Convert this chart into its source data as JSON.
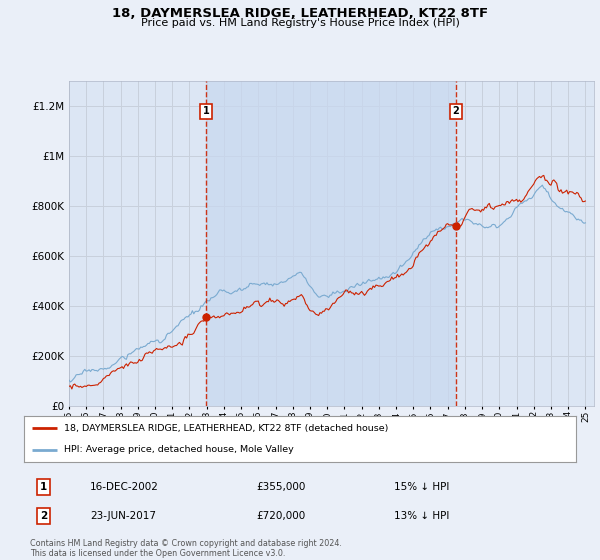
{
  "title": "18, DAYMERSLEA RIDGE, LEATHERHEAD, KT22 8TF",
  "subtitle": "Price paid vs. HM Land Registry's House Price Index (HPI)",
  "background_color": "#eaeff8",
  "plot_bg_color": "#dce6f4",
  "shade_color": "#c8d8ef",
  "grid_color": "#c8d0dc",
  "hpi_color": "#7aaad0",
  "price_color": "#cc2200",
  "vline_color": "#cc2200",
  "purchase1_date_num": 2002.96,
  "purchase1_label": "1",
  "purchase1_price": 355000,
  "purchase1_date_str": "16-DEC-2002",
  "purchase1_hpi_diff": "15% ↓ HPI",
  "purchase2_date_num": 2017.48,
  "purchase2_label": "2",
  "purchase2_price": 720000,
  "purchase2_date_str": "23-JUN-2017",
  "purchase2_hpi_diff": "13% ↓ HPI",
  "legend_line1": "18, DAYMERSLEA RIDGE, LEATHERHEAD, KT22 8TF (detached house)",
  "legend_line2": "HPI: Average price, detached house, Mole Valley",
  "footer": "Contains HM Land Registry data © Crown copyright and database right 2024.\nThis data is licensed under the Open Government Licence v3.0.",
  "ylim": [
    0,
    1300000
  ],
  "xlim_start": 1995.0,
  "xlim_end": 2025.5
}
